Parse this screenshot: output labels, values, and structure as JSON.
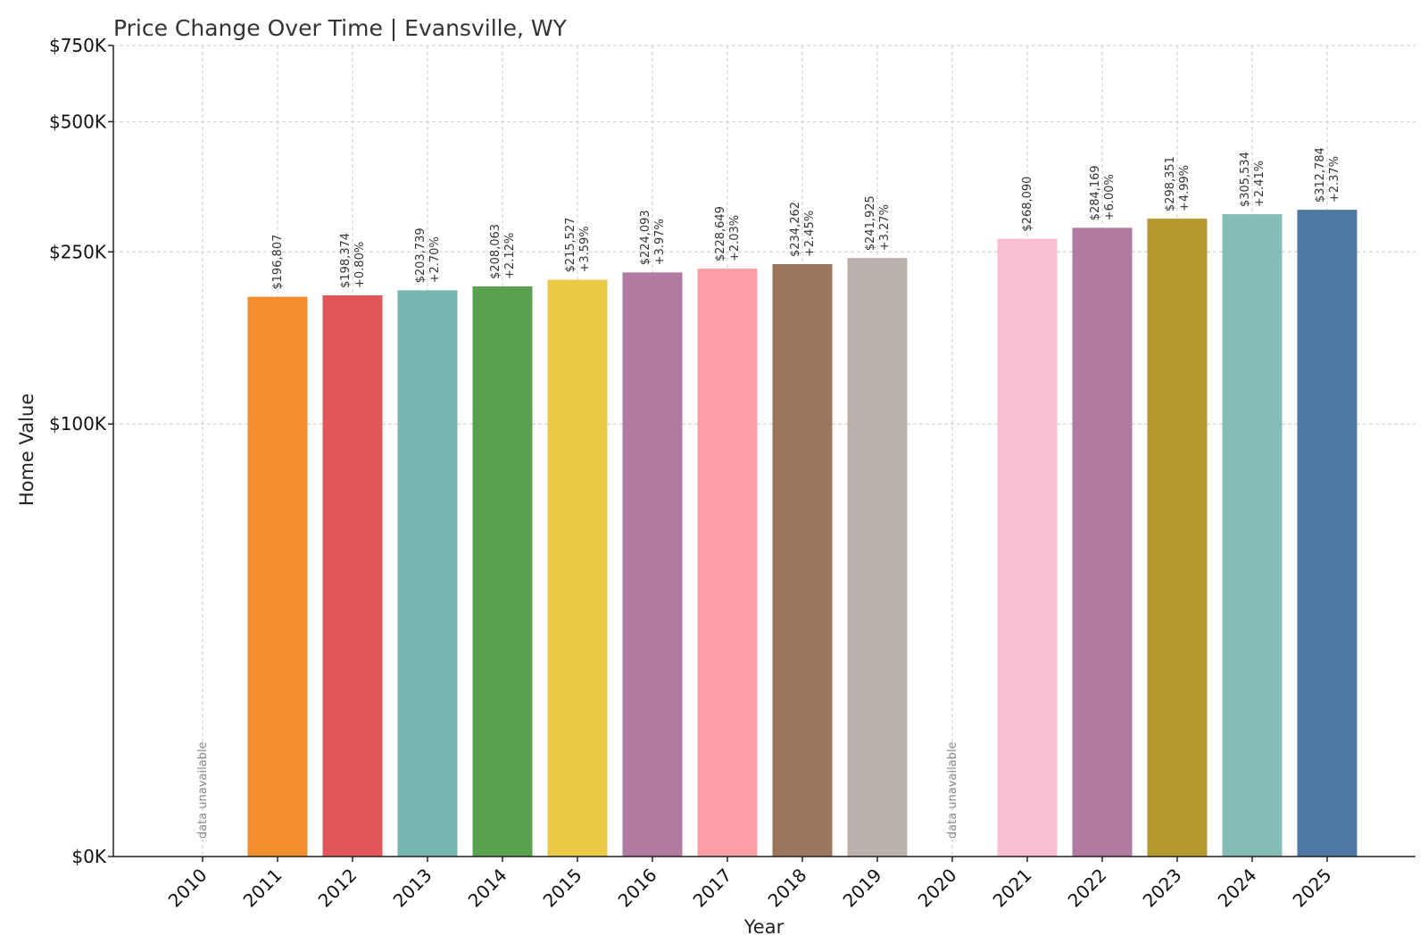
{
  "chart_data": {
    "type": "bar",
    "title": "Price Change Over Time | Evansville, WY",
    "xlabel": "Year",
    "ylabel": "Home Value",
    "ylim": [
      0,
      750000
    ],
    "yscale": "symlog",
    "yticks": [
      {
        "value": 0,
        "label": "$0K"
      },
      {
        "value": 100000,
        "label": "$100K"
      },
      {
        "value": 250000,
        "label": "$250K"
      },
      {
        "value": 500000,
        "label": "$500K"
      },
      {
        "value": 750000,
        "label": "$750K"
      }
    ],
    "grid": true,
    "bars": [
      {
        "year": "2010",
        "value": null,
        "value_label": "",
        "change_label": "",
        "na_label": "data unavailable",
        "color": ""
      },
      {
        "year": "2011",
        "value": 196807,
        "value_label": "$196,807",
        "change_label": "",
        "na_label": "",
        "color": "#F28E2B"
      },
      {
        "year": "2012",
        "value": 198374,
        "value_label": "$198,374",
        "change_label": "+0.80%",
        "na_label": "",
        "color": "#E15759"
      },
      {
        "year": "2013",
        "value": 203739,
        "value_label": "$203,739",
        "change_label": "+2.70%",
        "na_label": "",
        "color": "#76B7B2"
      },
      {
        "year": "2014",
        "value": 208063,
        "value_label": "$208,063",
        "change_label": "+2.12%",
        "na_label": "",
        "color": "#59A14F"
      },
      {
        "year": "2015",
        "value": 215527,
        "value_label": "$215,527",
        "change_label": "+3.59%",
        "na_label": "",
        "color": "#EDC948"
      },
      {
        "year": "2016",
        "value": 224093,
        "value_label": "$224,093",
        "change_label": "+3.97%",
        "na_label": "",
        "color": "#B07AA1"
      },
      {
        "year": "2017",
        "value": 228649,
        "value_label": "$228,649",
        "change_label": "+2.03%",
        "na_label": "",
        "color": "#FF9DA7"
      },
      {
        "year": "2018",
        "value": 234262,
        "value_label": "$234,262",
        "change_label": "+2.45%",
        "na_label": "",
        "color": "#9C755F"
      },
      {
        "year": "2019",
        "value": 241925,
        "value_label": "$241,925",
        "change_label": "+3.27%",
        "na_label": "",
        "color": "#BAB0AC"
      },
      {
        "year": "2020",
        "value": null,
        "value_label": "",
        "change_label": "",
        "na_label": "data unavailable",
        "color": ""
      },
      {
        "year": "2021",
        "value": 268090,
        "value_label": "$268,090",
        "change_label": "",
        "na_label": "",
        "color": "#F8BED1"
      },
      {
        "year": "2022",
        "value": 284169,
        "value_label": "$284,169",
        "change_label": "+6.00%",
        "na_label": "",
        "color": "#B07AA1"
      },
      {
        "year": "2023",
        "value": 298351,
        "value_label": "$298,351",
        "change_label": "+4.99%",
        "na_label": "",
        "color": "#B6992D"
      },
      {
        "year": "2024",
        "value": 305534,
        "value_label": "$305,534",
        "change_label": "+2.41%",
        "na_label": "",
        "color": "#86BCB6"
      },
      {
        "year": "2025",
        "value": 312784,
        "value_label": "$312,784",
        "change_label": "+2.37%",
        "na_label": "",
        "color": "#4E79A7"
      }
    ]
  }
}
